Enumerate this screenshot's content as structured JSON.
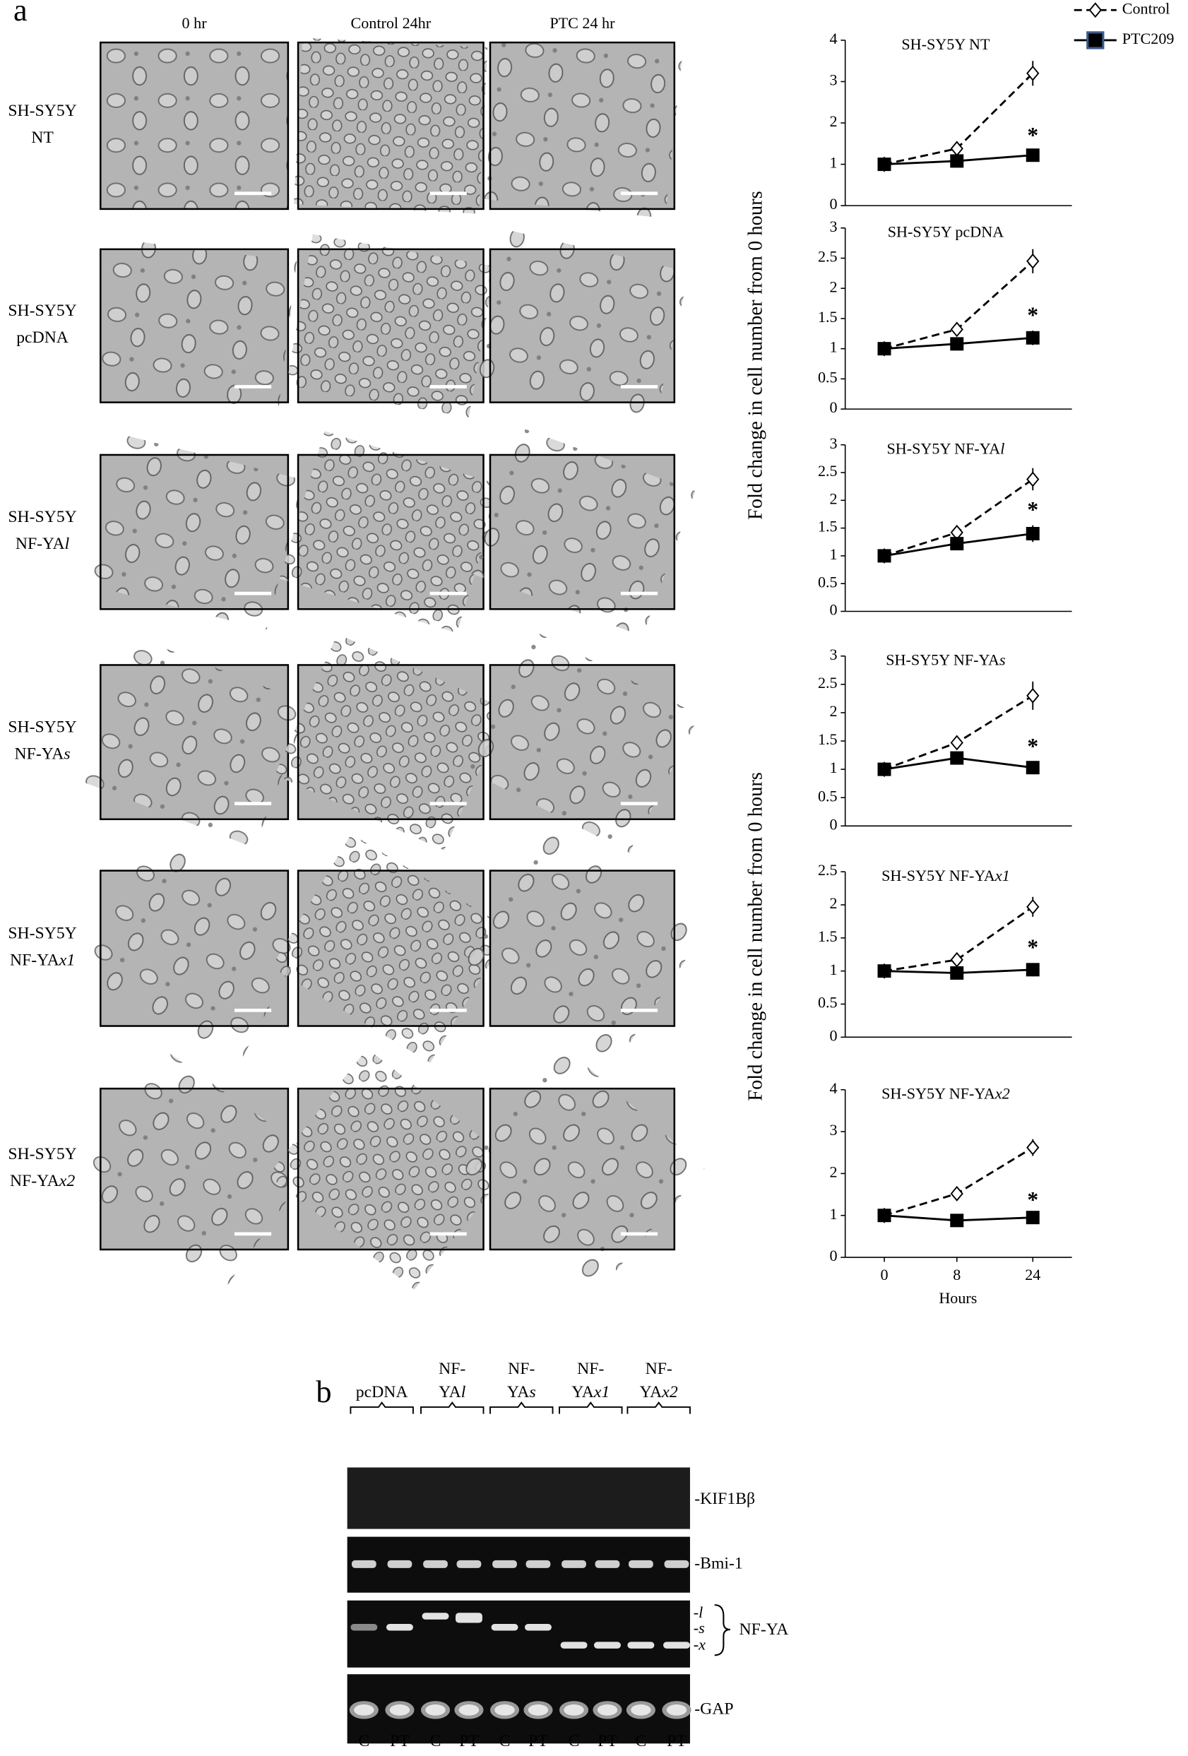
{
  "panel_a": "a",
  "panel_b": "b",
  "micrographs": {
    "columns": [
      "0 hr",
      "Control 24hr",
      "PTC 24 hr"
    ],
    "rows": [
      {
        "line1": "SH-SY5Y",
        "line2": "NT"
      },
      {
        "line1": "SH-SY5Y",
        "line2": "pcDNA"
      },
      {
        "line1": "SH-SY5Y",
        "line2": "NF-YA",
        "italic": "l"
      },
      {
        "line1": "SH-SY5Y",
        "line2": "NF-YA",
        "italic": "s"
      },
      {
        "line1": "SH-SY5Y",
        "line2": "NF-YA",
        "italic": "x1"
      },
      {
        "line1": "SH-SY5Y",
        "line2": "NF-YA",
        "italic": "x2"
      }
    ]
  },
  "chart_data": [
    {
      "type": "line",
      "title": "SH-SY5Y NT",
      "categories": [
        null,
        null,
        null
      ],
      "ylim": [
        0,
        4
      ],
      "yticks": [
        0,
        1,
        2,
        3,
        4
      ],
      "legend": "top-right",
      "annotation": "*",
      "series": [
        {
          "name": "Control",
          "color": "#000000",
          "dashed": true,
          "marker": "diamond",
          "values": [
            1,
            1.38,
            3.2
          ],
          "errors": [
            0.05,
            0.05,
            0.3
          ]
        },
        {
          "name": "PTC209",
          "color": "#000000",
          "dashed": false,
          "marker": "square",
          "values": [
            1,
            1.08,
            1.22
          ],
          "errors": [
            0.05,
            0.08,
            0.1
          ]
        }
      ]
    },
    {
      "type": "line",
      "title": "SH-SY5Y pcDNA",
      "categories": [
        null,
        null,
        null
      ],
      "ylim": [
        0,
        3
      ],
      "yticks": [
        0,
        0.5,
        1,
        1.5,
        2,
        2.5,
        3
      ],
      "annotation": "*",
      "ylabel": "Fold change in cell number from 0 hours",
      "series": [
        {
          "color": "#000000",
          "dashed": true,
          "marker": "diamond",
          "values": [
            1,
            1.32,
            2.45
          ],
          "errors": [
            0.08,
            0.08,
            0.2
          ]
        },
        {
          "color": "#000000",
          "dashed": false,
          "marker": "square",
          "values": [
            1,
            1.08,
            1.18
          ],
          "errors": [
            0.1,
            0.1,
            0.12
          ]
        }
      ]
    },
    {
      "type": "line",
      "title": "SH-SY5Y NF-YA",
      "title_italic": "l",
      "categories": [
        null,
        null,
        null
      ],
      "ylim": [
        0,
        3
      ],
      "yticks": [
        0,
        0.5,
        1,
        1.5,
        2,
        2.5,
        3
      ],
      "annotation": "*",
      "series": [
        {
          "color": "#000000",
          "dashed": true,
          "marker": "diamond",
          "values": [
            1,
            1.42,
            2.38
          ],
          "errors": [
            0.08,
            0.1,
            0.2
          ]
        },
        {
          "color": "#000000",
          "dashed": false,
          "marker": "square",
          "values": [
            1,
            1.22,
            1.4
          ],
          "errors": [
            0.1,
            0.12,
            0.15
          ]
        }
      ]
    },
    {
      "type": "line",
      "title": "SH-SY5Y NF-YA",
      "title_italic": "s",
      "categories": [
        null,
        null,
        null
      ],
      "ylim": [
        0,
        3
      ],
      "yticks": [
        0,
        0.5,
        1,
        1.5,
        2,
        2.5,
        3
      ],
      "annotation": "*",
      "series": [
        {
          "color": "#000000",
          "dashed": true,
          "marker": "diamond",
          "values": [
            1,
            1.47,
            2.3
          ],
          "errors": [
            0.08,
            0.12,
            0.25
          ]
        },
        {
          "color": "#000000",
          "dashed": false,
          "marker": "square",
          "values": [
            1,
            1.2,
            1.03
          ],
          "errors": [
            0.08,
            0.1,
            0.1
          ]
        }
      ]
    },
    {
      "type": "line",
      "title": "SH-SY5Y NF-YA",
      "title_italic": "x1",
      "categories": [
        null,
        null,
        null
      ],
      "ylim": [
        0,
        2.5
      ],
      "yticks": [
        0,
        0.5,
        1,
        1.5,
        2,
        2.5
      ],
      "annotation": "*",
      "ylabel": "Fold change in cell number from 0 hours",
      "series": [
        {
          "color": "#000000",
          "dashed": true,
          "marker": "diamond",
          "values": [
            1,
            1.17,
            1.97
          ],
          "errors": [
            0.08,
            0.05,
            0.15
          ]
        },
        {
          "color": "#000000",
          "dashed": false,
          "marker": "square",
          "values": [
            1,
            0.97,
            1.02
          ],
          "errors": [
            0.08,
            0.1,
            0.1
          ]
        }
      ]
    },
    {
      "type": "line",
      "title": "SH-SY5Y NF-YA",
      "title_italic": "x2",
      "categories": [
        "0",
        "8",
        "24"
      ],
      "xlabel": "Hours",
      "ylim": [
        0,
        4
      ],
      "yticks": [
        0,
        1,
        2,
        3,
        4
      ],
      "annotation": "*",
      "series": [
        {
          "color": "#000000",
          "dashed": true,
          "marker": "diamond",
          "values": [
            1,
            1.52,
            2.62
          ],
          "errors": [
            0.05,
            0.05,
            0.2
          ]
        },
        {
          "color": "#000000",
          "dashed": false,
          "marker": "square",
          "values": [
            1,
            0.88,
            0.95
          ],
          "errors": [
            0.05,
            0.05,
            0.05
          ]
        }
      ]
    }
  ],
  "gel": {
    "groups": [
      {
        "line2": "pcDNA"
      },
      {
        "line1": "NF-",
        "line2": "YA",
        "italic": "l"
      },
      {
        "line1": "NF-",
        "line2": "YA",
        "italic": "s"
      },
      {
        "line1": "NF-",
        "line2": "YA",
        "italic": "x1"
      },
      {
        "line1": "NF-",
        "line2": "YA",
        "italic": "x2"
      }
    ],
    "row_labels": [
      "-KIF1Bβ",
      "-Bmi-1",
      "-GAP"
    ],
    "nfya_bands": [
      {
        "dash": "-",
        "letter": "l"
      },
      {
        "dash": "-",
        "letter": "s"
      },
      {
        "dash": "-",
        "letter": "x"
      }
    ],
    "nfya_label": "NF-YA",
    "lanes": [
      "C",
      "PT",
      "C",
      "PT",
      "C",
      "PT",
      "C",
      "PT",
      "C",
      "PT"
    ]
  }
}
